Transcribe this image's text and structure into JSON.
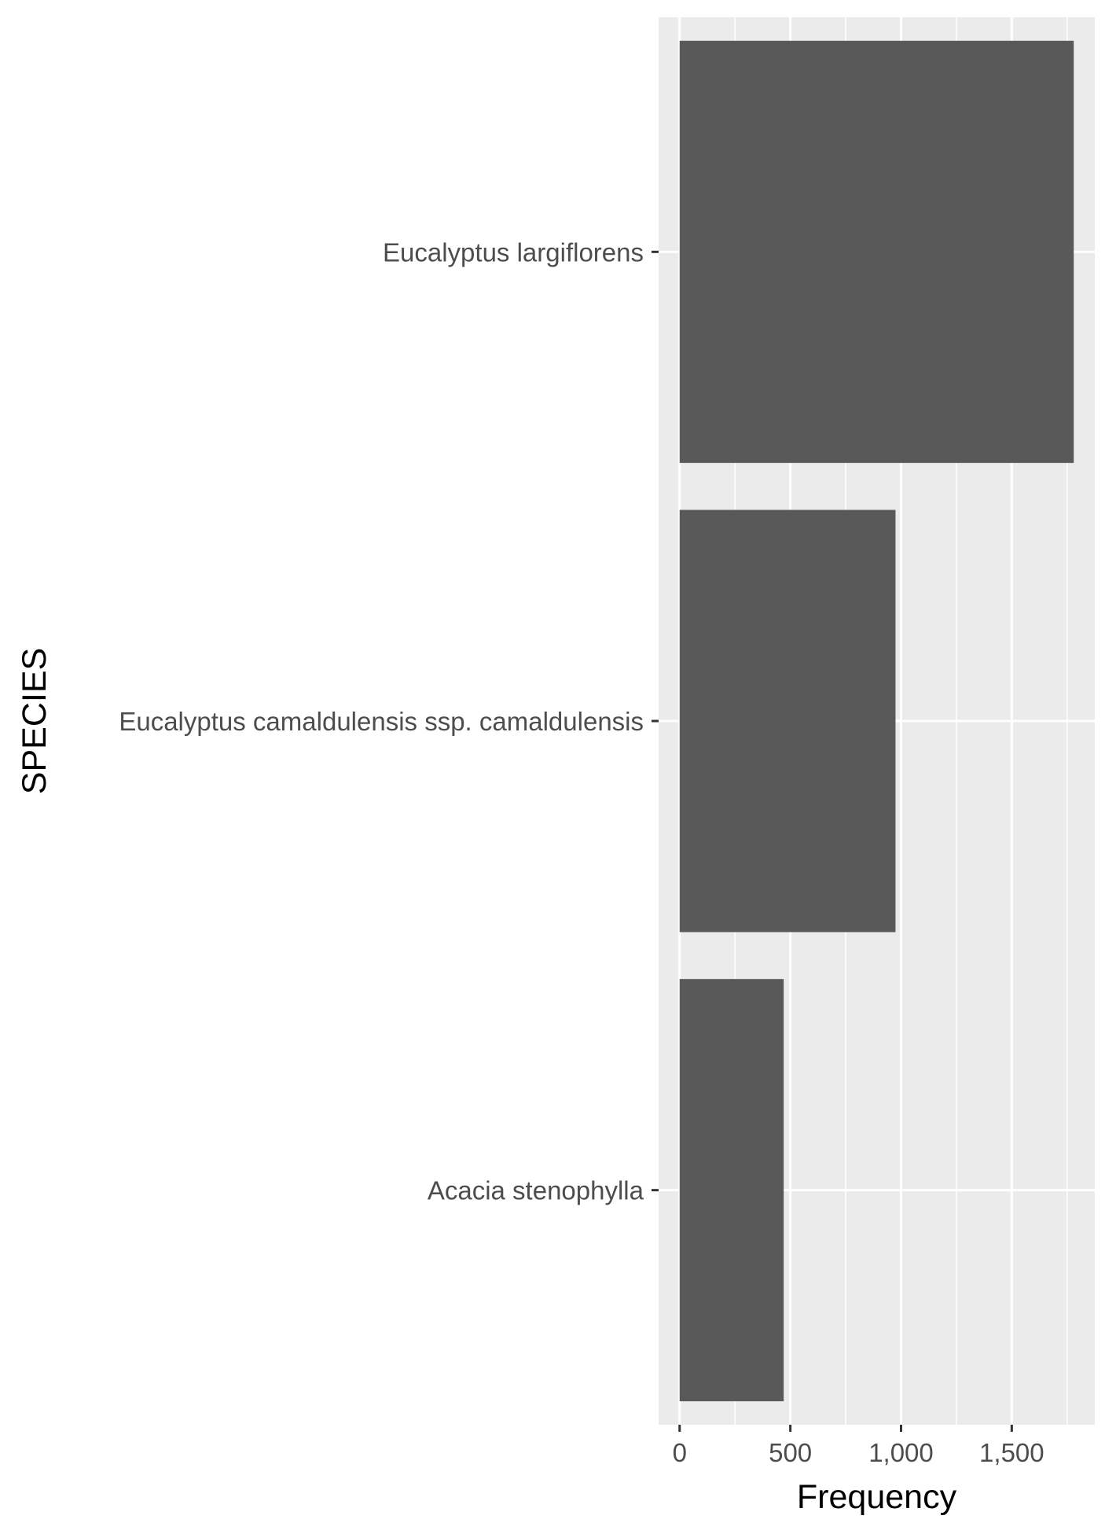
{
  "chart_data": {
    "type": "bar",
    "orientation": "horizontal",
    "categories": [
      "Eucalyptus largiflorens",
      "Eucalyptus camaldulensis ssp. camaldulensis",
      "Acacia stenophylla"
    ],
    "values": [
      1780,
      975,
      470
    ],
    "xlabel": "Frequency",
    "ylabel": "SPECIES",
    "xlim": [
      -95,
      1875
    ],
    "xticks": [
      0,
      500,
      1000,
      1500
    ],
    "xtick_labels": [
      "0",
      "500",
      "1,000",
      "1,500"
    ],
    "grid": true,
    "colors": {
      "bar": "#595959",
      "panel": "#ebebeb",
      "grid": "#ffffff",
      "tick_text": "#4d4d4d",
      "title_text": "#000000"
    }
  }
}
